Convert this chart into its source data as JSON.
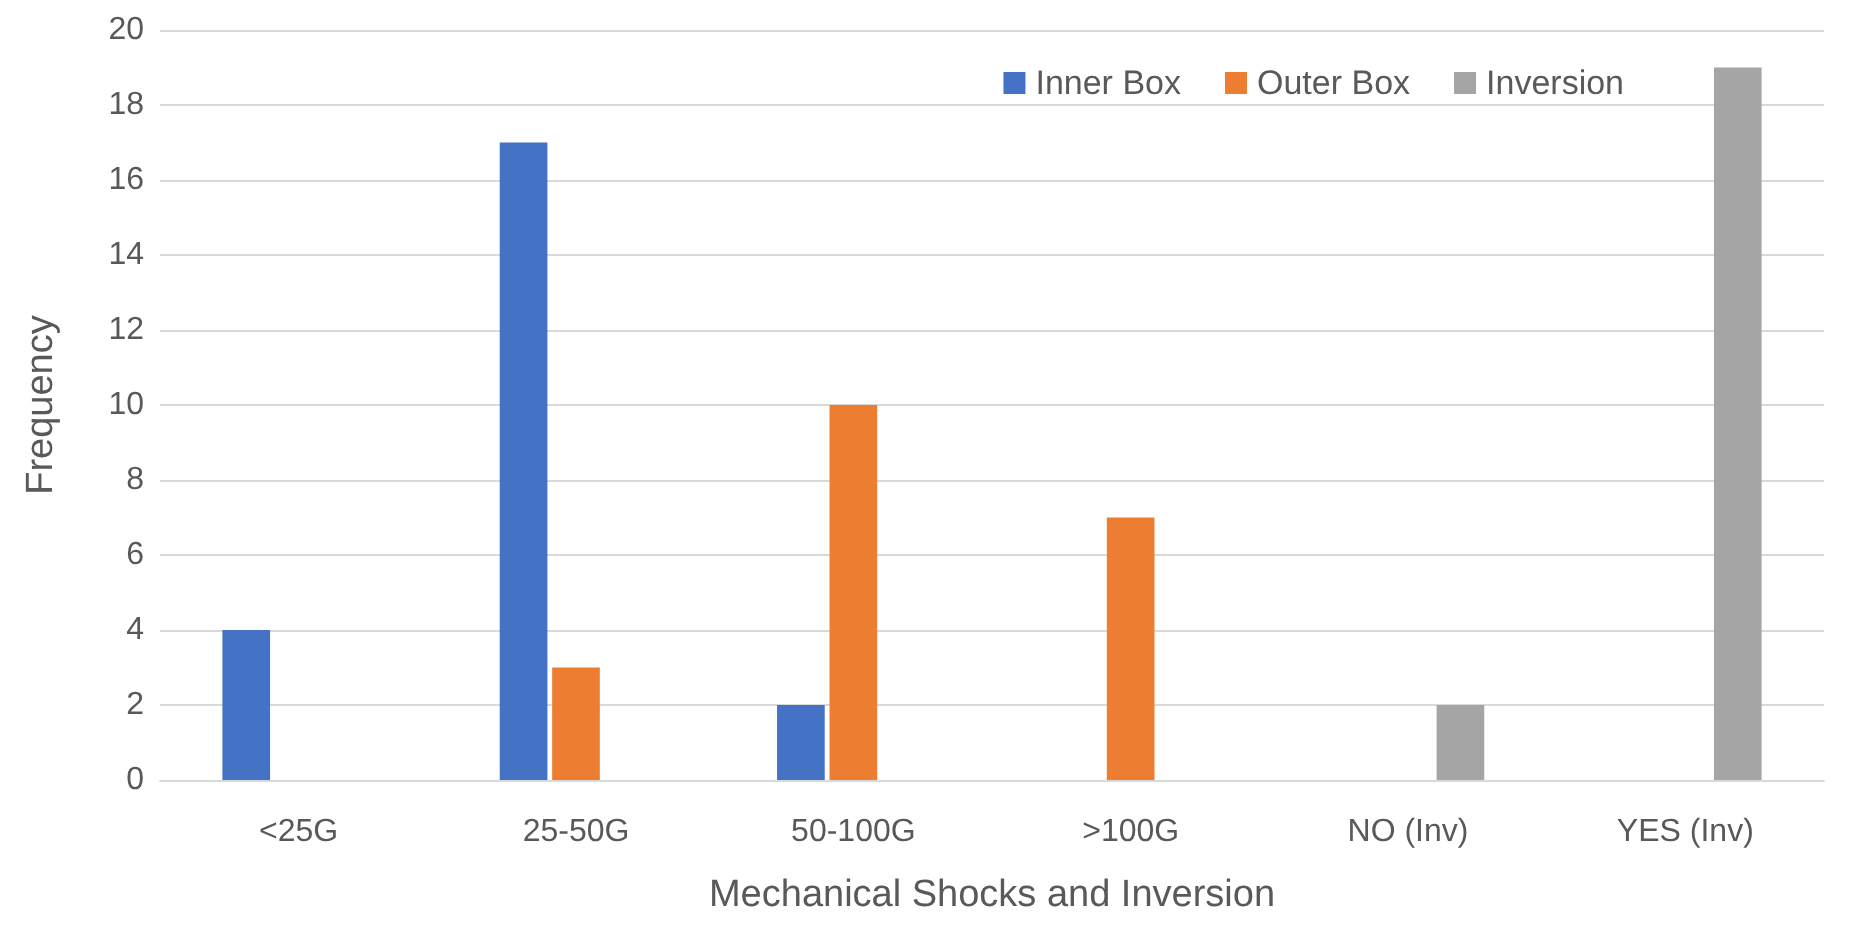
{
  "chart_data": {
    "type": "bar",
    "xlabel": "Mechanical Shocks and Inversion",
    "ylabel": "Frequency",
    "categories": [
      "<25G",
      "25-50G",
      "50-100G",
      ">100G",
      "NO (Inv)",
      "YES (Inv)"
    ],
    "series": [
      {
        "name": "Inner Box",
        "color": "#4472c4",
        "values": [
          4,
          17,
          2,
          null,
          null,
          null
        ]
      },
      {
        "name": "Outer Box",
        "color": "#ed7d31",
        "values": [
          null,
          3,
          10,
          7,
          null,
          null
        ]
      },
      {
        "name": "Inversion",
        "color": "#a5a5a5",
        "values": [
          null,
          null,
          null,
          null,
          2,
          19
        ]
      }
    ],
    "ylim": [
      0,
      20
    ],
    "yticks": [
      0,
      2,
      4,
      6,
      8,
      10,
      12,
      14,
      16,
      18,
      20
    ],
    "grid": "y",
    "legend": "top right"
  }
}
